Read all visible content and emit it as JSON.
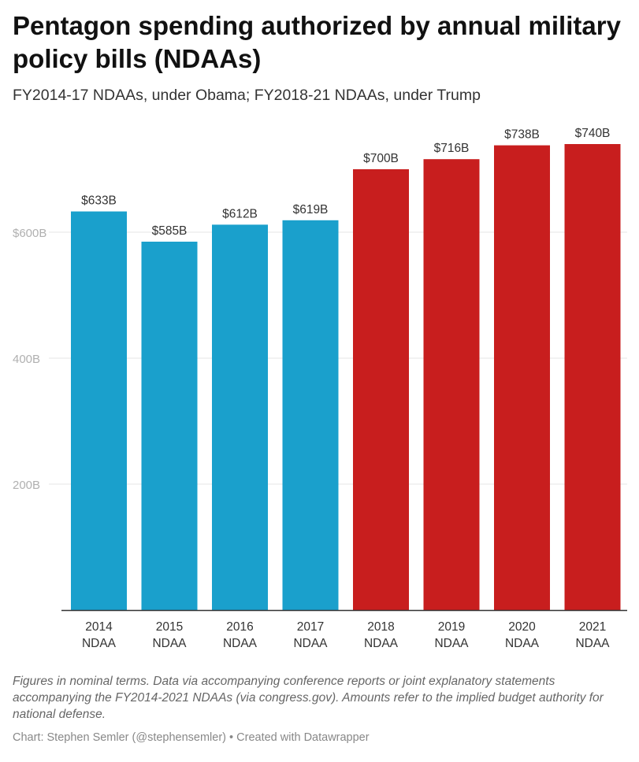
{
  "title": "Pentagon spending authorized by annual military policy bills (NDAAs)",
  "subtitle": "FY2014-17 NDAAs, under Obama; FY2018-21 NDAAs, under Trump",
  "notes": "Figures in nominal terms. Data via accompanying conference reports or joint explanatory statements accompanying the FY2014-2021 NDAAs (via congress.gov). Amounts refer to the implied budget authority for national defense.",
  "credit": "Chart: Stephen Semler (@stephensemler) • Created with Datawrapper",
  "colors": {
    "obama": "#1aa0cc",
    "trump": "#c81e1e",
    "axis_label": "#b0b0b0",
    "grid": "#e6e6e6"
  },
  "chart_data": {
    "type": "bar",
    "categories": [
      "2014",
      "2015",
      "2016",
      "2017",
      "2018",
      "2019",
      "2020",
      "2021"
    ],
    "category_suffix": "NDAA",
    "values": [
      633,
      585,
      612,
      619,
      700,
      716,
      738,
      740
    ],
    "value_labels": [
      "$633B",
      "$585B",
      "$612B",
      "$619B",
      "$700B",
      "$716B",
      "$738B",
      "$740B"
    ],
    "bar_groups": [
      "obama",
      "obama",
      "obama",
      "obama",
      "trump",
      "trump",
      "trump",
      "trump"
    ],
    "y_ticks": [
      200,
      400,
      600
    ],
    "y_tick_labels": [
      "200B",
      "400B",
      "$600B"
    ],
    "ylim": [
      0,
      750
    ],
    "grid": true,
    "xlabel": "",
    "ylabel": ""
  }
}
